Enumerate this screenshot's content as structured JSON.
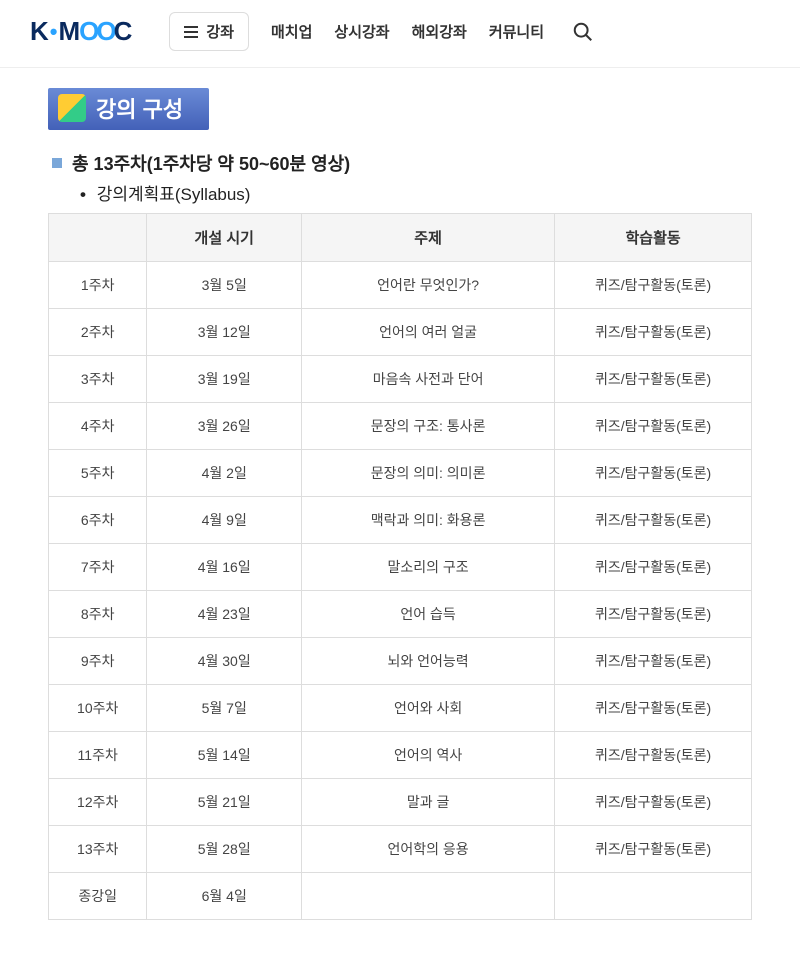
{
  "brand": {
    "k": "K",
    "m": "M",
    "oo": "OO",
    "c": "C"
  },
  "nav": {
    "main_button": "강좌",
    "items": [
      "매치업",
      "상시강좌",
      "해외강좌",
      "커뮤니티"
    ]
  },
  "section_title": "강의 구성",
  "summary": "총 13주차(1주차당 약 50~60분 영상)",
  "syllabus_label": "강의계획표(Syllabus)",
  "table": {
    "columns": [
      "",
      "개설 시기",
      "주제",
      "학습활동"
    ],
    "col_widths_pct": [
      14,
      22,
      36,
      28
    ],
    "header_bg": "#f5f5f5",
    "border_color": "#dddddd",
    "rows": [
      [
        "1주차",
        "3월 5일",
        "언어란 무엇인가?",
        "퀴즈/탐구활동(토론)"
      ],
      [
        "2주차",
        "3월 12일",
        "언어의 여러 얼굴",
        "퀴즈/탐구활동(토론)"
      ],
      [
        "3주차",
        "3월 19일",
        "마음속 사전과 단어",
        "퀴즈/탐구활동(토론)"
      ],
      [
        "4주차",
        "3월 26일",
        "문장의 구조: 통사론",
        "퀴즈/탐구활동(토론)"
      ],
      [
        "5주차",
        "4월 2일",
        "문장의 의미: 의미론",
        "퀴즈/탐구활동(토론)"
      ],
      [
        "6주차",
        "4월 9일",
        "맥락과 의미: 화용론",
        "퀴즈/탐구활동(토론)"
      ],
      [
        "7주차",
        "4월 16일",
        "말소리의 구조",
        "퀴즈/탐구활동(토론)"
      ],
      [
        "8주차",
        "4월 23일",
        "언어 습득",
        "퀴즈/탐구활동(토론)"
      ],
      [
        "9주차",
        "4월 30일",
        "뇌와 언어능력",
        "퀴즈/탐구활동(토론)"
      ],
      [
        "10주차",
        "5월 7일",
        "언어와 사회",
        "퀴즈/탐구활동(토론)"
      ],
      [
        "11주차",
        "5월 14일",
        "언어의 역사",
        "퀴즈/탐구활동(토론)"
      ],
      [
        "12주차",
        "5월 21일",
        "말과 글",
        "퀴즈/탐구활동(토론)"
      ],
      [
        "13주차",
        "5월 28일",
        "언어학의 응용",
        "퀴즈/탐구활동(토론)"
      ],
      [
        "종강일",
        "6월 4일",
        "",
        ""
      ]
    ]
  },
  "colors": {
    "brand_dark": "#0a2a5e",
    "brand_blue": "#2aa3ff",
    "bullet": "#7aa7d9"
  }
}
